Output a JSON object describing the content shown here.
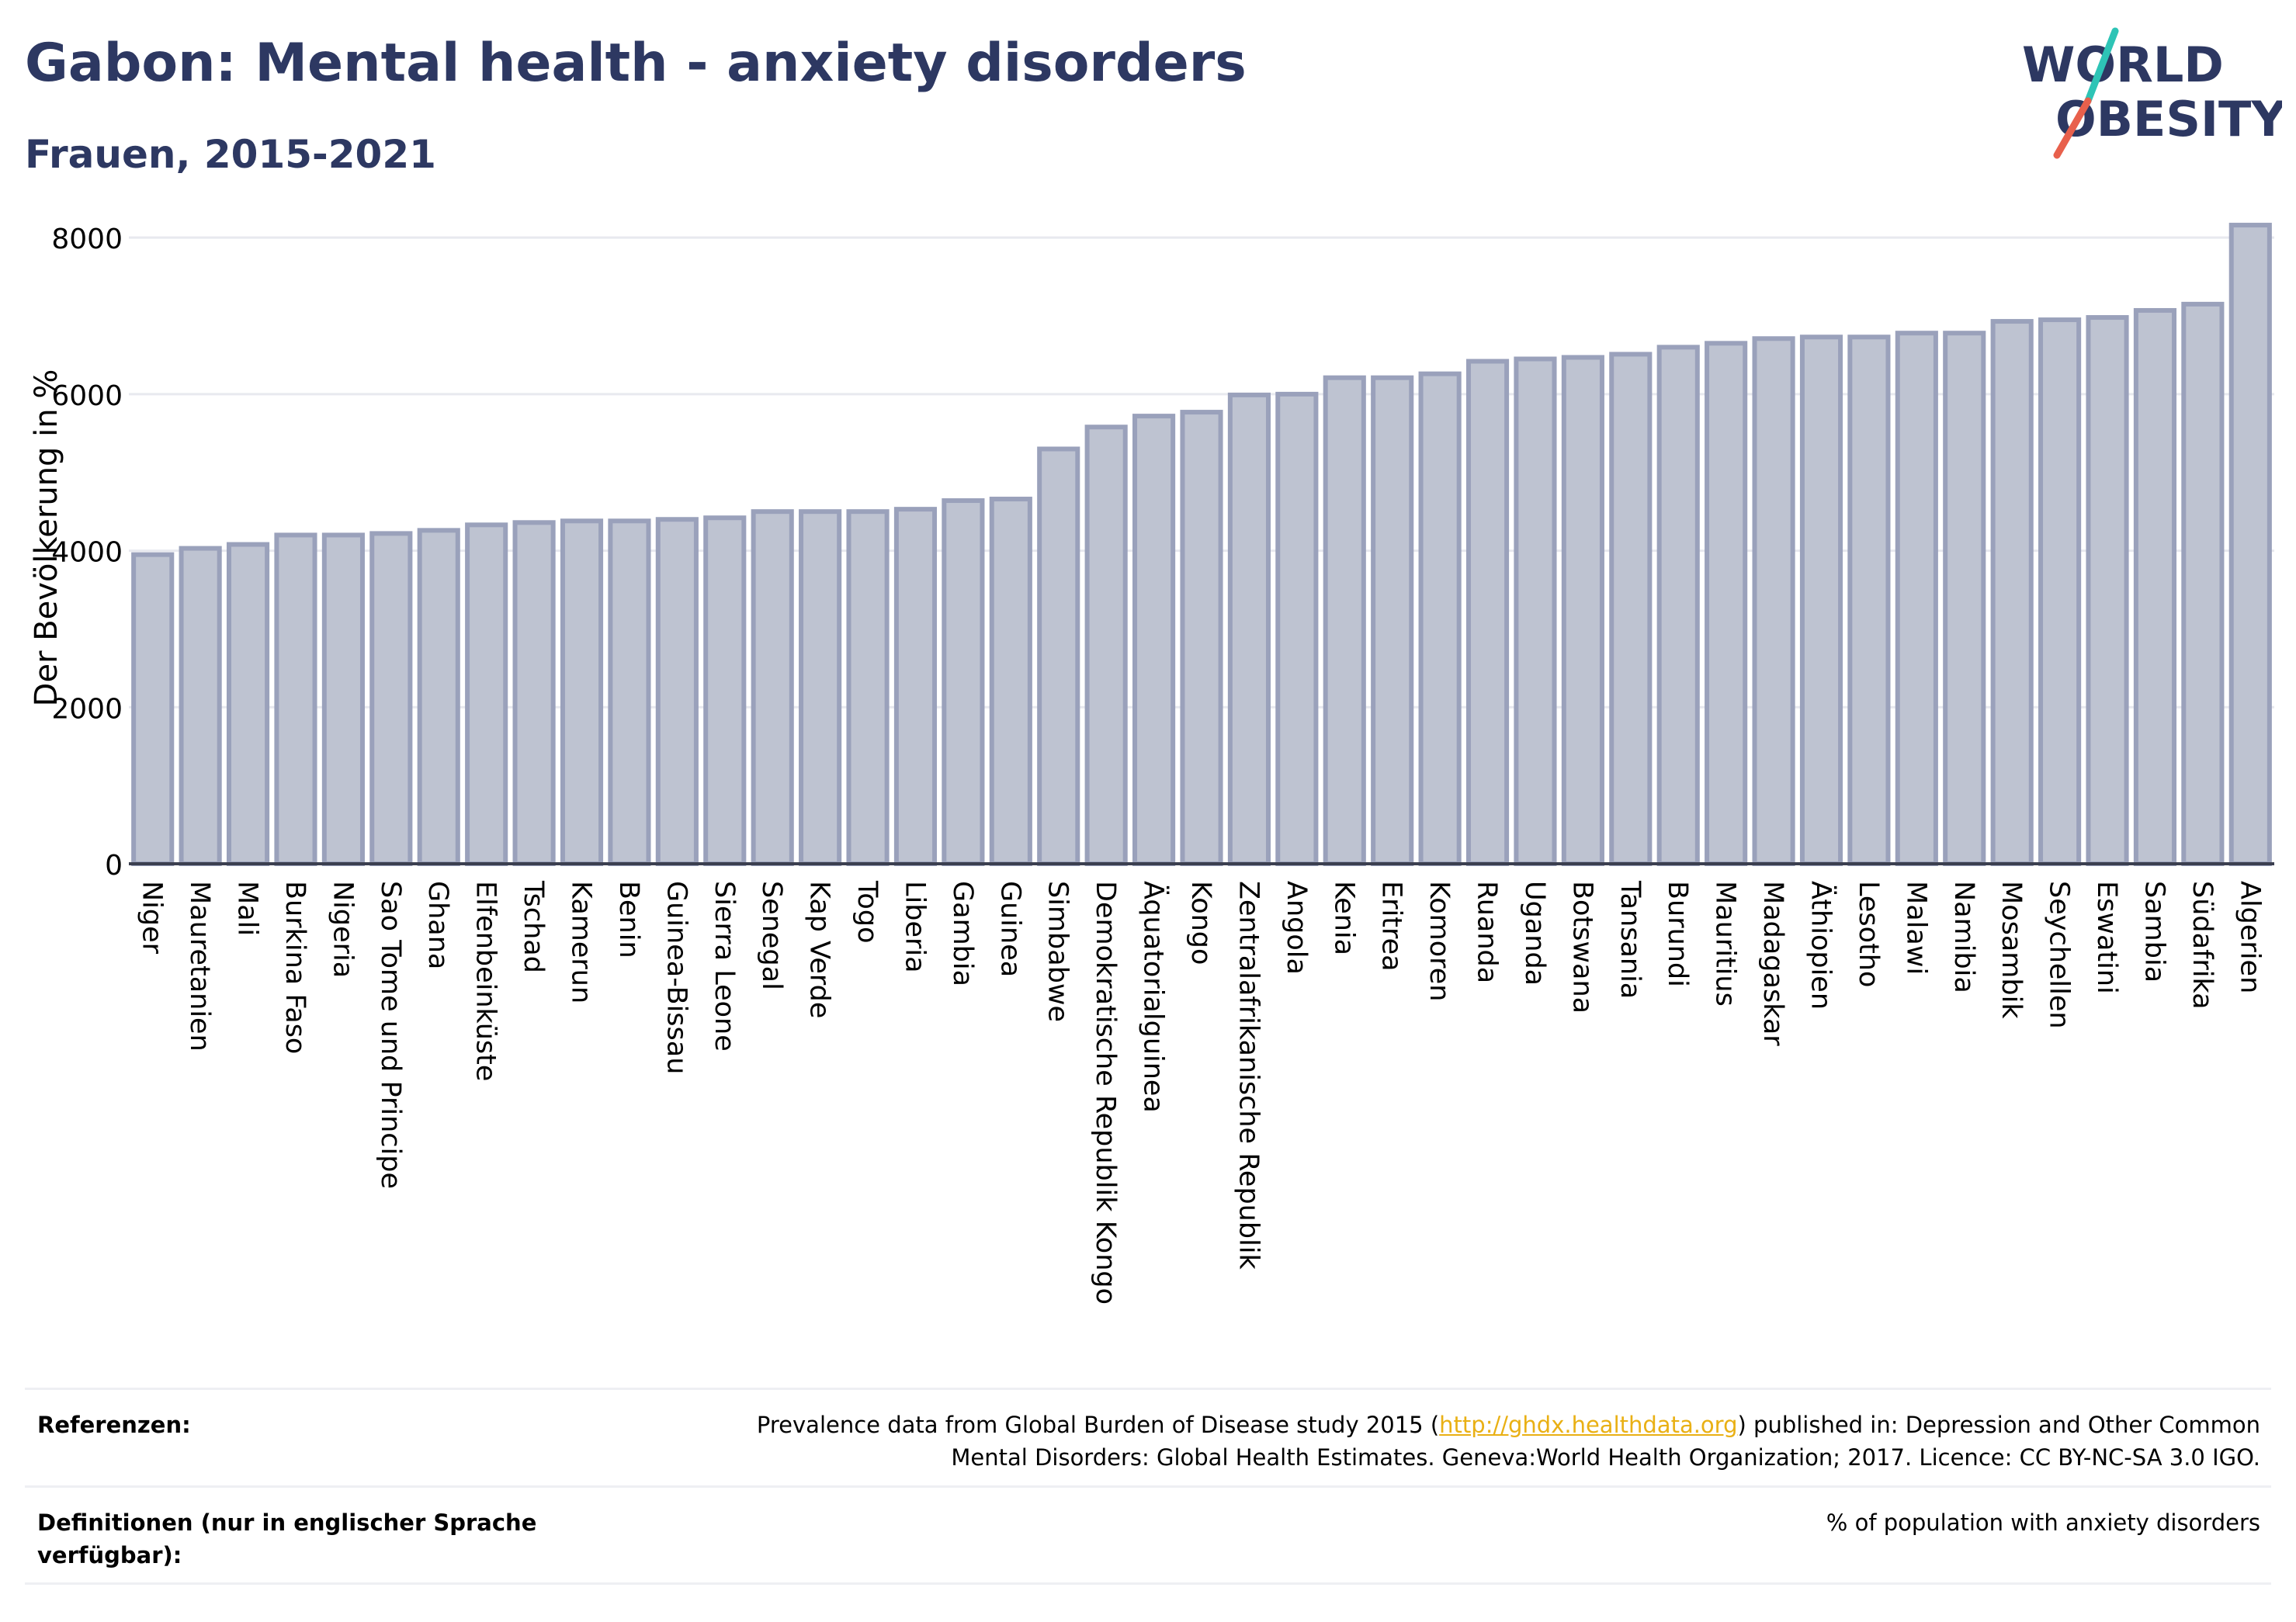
{
  "header": {
    "title": "Gabon: Mental health - anxiety disorders",
    "subtitle": "Frauen, 2015-2021"
  },
  "logo": {
    "line1": "WORLD",
    "line2": "OBESITY",
    "text_color": "#2d3862",
    "slash_colors": [
      "#2ec4b6",
      "#e8604c"
    ]
  },
  "colors": {
    "bar_fill": "#bec3d1",
    "bar_stroke": "#9aa1bb",
    "grid": "#e8e9ef",
    "axis": "#3b3f4f",
    "title": "#2d3862"
  },
  "chart_data": {
    "type": "bar",
    "ylabel": "Der Bevölkerung in %",
    "ylim": [
      0,
      8200
    ],
    "yticks": [
      0,
      2000,
      4000,
      6000,
      8000
    ],
    "grid": true,
    "categories": [
      "Niger",
      "Mauretanien",
      "Mali",
      "Burkina Faso",
      "Nigeria",
      "Sao Tome und Principe",
      "Ghana",
      "Elfenbeinküste",
      "Tschad",
      "Kamerun",
      "Benin",
      "Guinea-Bissau",
      "Sierra Leone",
      "Senegal",
      "Kap Verde",
      "Togo",
      "Liberia",
      "Gambia",
      "Guinea",
      "Simbabwe",
      "Demokratische Republik Kongo",
      "Äquatorialguinea",
      "Kongo",
      "Zentralafrikanische Republik",
      "Angola",
      "Kenia",
      "Eritrea",
      "Komoren",
      "Ruanda",
      "Uganda",
      "Botswana",
      "Tansania",
      "Burundi",
      "Mauritius",
      "Madagaskar",
      "Äthiopien",
      "Lesotho",
      "Malawi",
      "Namibia",
      "Mosambik",
      "Seychellen",
      "Eswatini",
      "Sambia",
      "Südafrika",
      "Algerien"
    ],
    "values": [
      3950,
      4030,
      4080,
      4200,
      4200,
      4220,
      4260,
      4330,
      4360,
      4380,
      4380,
      4400,
      4420,
      4500,
      4500,
      4500,
      4530,
      4640,
      4660,
      5300,
      5580,
      5720,
      5770,
      5990,
      6000,
      6210,
      6210,
      6260,
      6420,
      6450,
      6470,
      6510,
      6600,
      6650,
      6710,
      6730,
      6730,
      6780,
      6780,
      6930,
      6950,
      6980,
      7070,
      7150,
      8160
    ]
  },
  "footer": {
    "references_label": "Referenzen:",
    "references_text_before": "Prevalence data from Global Burden of Disease study 2015 (",
    "references_link": "http://ghdx.healthdata.org",
    "references_text_after": ") published in: Depression and Other Common Mental Disorders: Global Health Estimates. Geneva:World Health Organization; 2017. Licence: CC BY-NC-SA 3.0 IGO.",
    "definitions_label": "Definitionen (nur in englischer Sprache verfügbar):",
    "definitions_text": "% of population with anxiety disorders"
  }
}
